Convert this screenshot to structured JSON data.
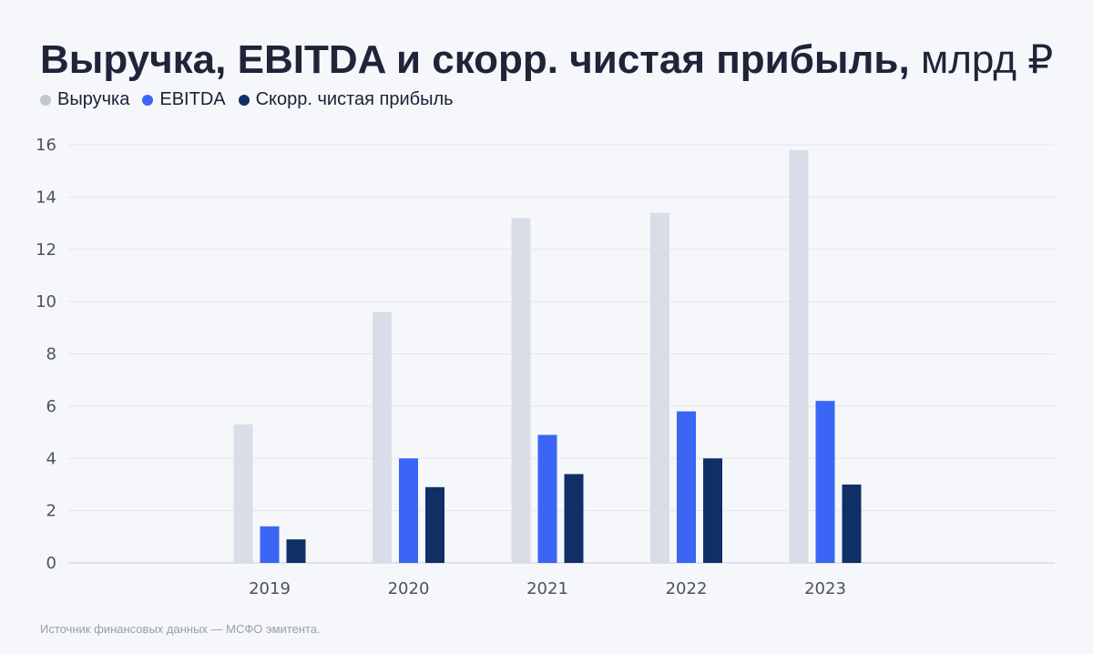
{
  "title": {
    "main": "Выручка, EBITDA и скорр. чистая прибыль,",
    "unit": "млрд ₽"
  },
  "legend": [
    {
      "label": "Выручка",
      "color": "#c3c7d3"
    },
    {
      "label": "EBITDA",
      "color": "#3b66f5"
    },
    {
      "label": "Скорр. чистая прибыль",
      "color": "#12306b"
    }
  ],
  "chart_data": {
    "type": "bar",
    "categories": [
      "2019",
      "2020",
      "2021",
      "2022",
      "2023"
    ],
    "series": [
      {
        "name": "Выручка",
        "color": "#d8dde7",
        "values": [
          5.3,
          9.6,
          13.2,
          13.4,
          15.8
        ]
      },
      {
        "name": "EBITDA",
        "color": "#3b66f5",
        "values": [
          1.4,
          4.0,
          4.9,
          5.8,
          6.2
        ]
      },
      {
        "name": "Скорр. чистая прибыль",
        "color": "#0f2f66",
        "values": [
          0.9,
          2.9,
          3.4,
          4.0,
          3.0
        ]
      }
    ],
    "yticks": [
      0,
      2,
      4,
      6,
      8,
      10,
      12,
      14,
      16
    ],
    "ylim": [
      0,
      16
    ],
    "grid": true,
    "legend_position": "top-left"
  },
  "footnote": "Источник финансовых данных — МСФО эмитента."
}
